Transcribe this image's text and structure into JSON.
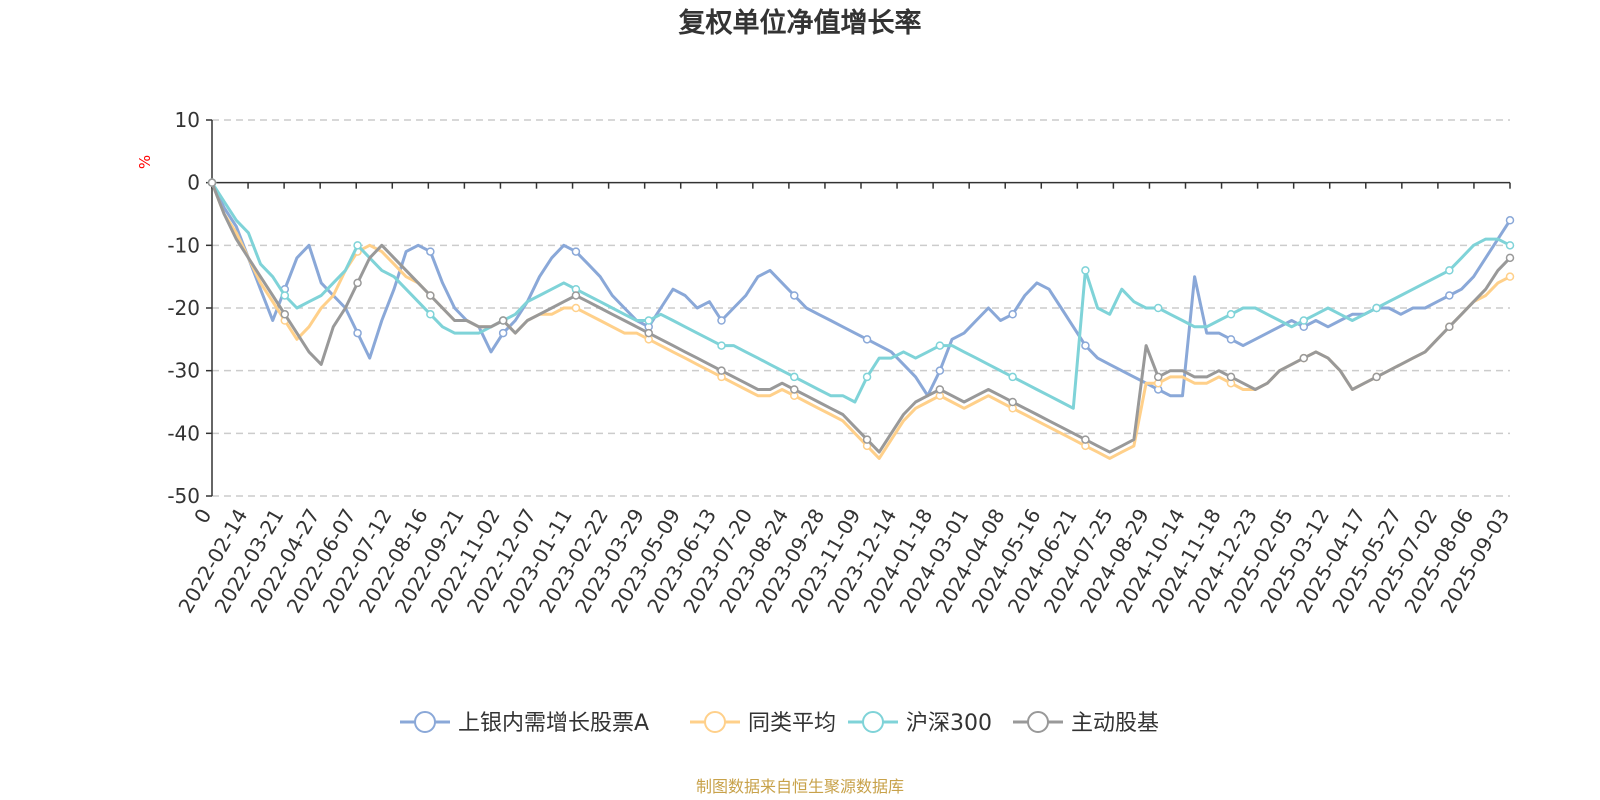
{
  "chart_data": {
    "type": "line",
    "title": "复权单位净值增长率",
    "ylabel": "%",
    "ylim": [
      -50,
      10
    ],
    "yticks": [
      10,
      0,
      -10,
      -20,
      -30,
      -40,
      -50
    ],
    "grid": true,
    "legend_position": "bottom-center",
    "x_tick_labels": [
      "0",
      "2022-02-14",
      "2022-03-21",
      "2022-04-27",
      "2022-06-07",
      "2022-07-12",
      "2022-08-16",
      "2022-09-21",
      "2022-11-02",
      "2022-12-07",
      "2023-01-11",
      "2023-02-22",
      "2023-03-29",
      "2023-05-09",
      "2023-06-13",
      "2023-07-20",
      "2023-08-24",
      "2023-09-28",
      "2023-11-09",
      "2023-12-14",
      "2024-01-18",
      "2024-03-01",
      "2024-04-08",
      "2024-05-16",
      "2024-06-21",
      "2024-07-25",
      "2024-08-29",
      "2024-10-14",
      "2024-11-18",
      "2024-12-23",
      "2025-02-05",
      "2025-03-12",
      "2025-04-17",
      "2025-05-27",
      "2025-07-02",
      "2025-08-06",
      "2025-09-03"
    ],
    "series": [
      {
        "name": "上银内需增长股票A",
        "color": "#8aa8d8",
        "values": [
          0,
          -4,
          -7,
          -12,
          -17,
          -22,
          -17,
          -12,
          -10,
          -16,
          -18,
          -20,
          -24,
          -28,
          -22,
          -17,
          -11,
          -10,
          -11,
          -16,
          -20,
          -22,
          -23,
          -27,
          -24,
          -22,
          -19,
          -15,
          -12,
          -10,
          -11,
          -13,
          -15,
          -18,
          -20,
          -22,
          -23,
          -20,
          -17,
          -18,
          -20,
          -19,
          -22,
          -20,
          -18,
          -15,
          -14,
          -16,
          -18,
          -20,
          -21,
          -22,
          -23,
          -24,
          -25,
          -26,
          -27,
          -29,
          -31,
          -34,
          -30,
          -25,
          -24,
          -22,
          -20,
          -22,
          -21,
          -18,
          -16,
          -17,
          -20,
          -23,
          -26,
          -28,
          -29,
          -30,
          -31,
          -32,
          -33,
          -34,
          -34,
          -15,
          -24,
          -24,
          -25,
          -26,
          -25,
          -24,
          -23,
          -22,
          -23,
          -22,
          -23,
          -22,
          -21,
          -21,
          -20,
          -20,
          -21,
          -20,
          -20,
          -19,
          -18,
          -17,
          -15,
          -12,
          -9,
          -6
        ]
      },
      {
        "name": "同类平均",
        "color": "#ffd08a",
        "values": [
          0,
          -5,
          -8,
          -12,
          -16,
          -19,
          -22,
          -25,
          -23,
          -20,
          -18,
          -14,
          -11,
          -10,
          -11,
          -13,
          -15,
          -16,
          -18,
          -20,
          -22,
          -22,
          -23,
          -23,
          -22,
          -24,
          -22,
          -21,
          -21,
          -20,
          -20,
          -21,
          -22,
          -23,
          -24,
          -24,
          -25,
          -26,
          -27,
          -28,
          -29,
          -30,
          -31,
          -32,
          -33,
          -34,
          -34,
          -33,
          -34,
          -35,
          -36,
          -37,
          -38,
          -40,
          -42,
          -44,
          -41,
          -38,
          -36,
          -35,
          -34,
          -35,
          -36,
          -35,
          -34,
          -35,
          -36,
          -37,
          -38,
          -39,
          -40,
          -41,
          -42,
          -43,
          -44,
          -43,
          -42,
          -32,
          -32,
          -31,
          -31,
          -32,
          -32,
          -31,
          -32,
          -33,
          -33,
          -32,
          -30,
          -29,
          -28,
          -27,
          -28,
          -30,
          -33,
          -32,
          -31,
          -30,
          -29,
          -28,
          -27,
          -25,
          -23,
          -21,
          -19,
          -18,
          -16,
          -15
        ]
      },
      {
        "name": "沪深300",
        "color": "#7fd3d8",
        "values": [
          0,
          -3,
          -6,
          -8,
          -13,
          -15,
          -18,
          -20,
          -19,
          -18,
          -16,
          -14,
          -10,
          -12,
          -14,
          -15,
          -17,
          -19,
          -21,
          -23,
          -24,
          -24,
          -24,
          -23,
          -22,
          -21,
          -19,
          -18,
          -17,
          -16,
          -17,
          -18,
          -19,
          -20,
          -21,
          -22,
          -22,
          -21,
          -22,
          -23,
          -24,
          -25,
          -26,
          -26,
          -27,
          -28,
          -29,
          -30,
          -31,
          -32,
          -33,
          -34,
          -34,
          -35,
          -31,
          -28,
          -28,
          -27,
          -28,
          -27,
          -26,
          -26,
          -27,
          -28,
          -29,
          -30,
          -31,
          -32,
          -33,
          -34,
          -35,
          -36,
          -14,
          -20,
          -21,
          -17,
          -19,
          -20,
          -20,
          -21,
          -22,
          -23,
          -23,
          -22,
          -21,
          -20,
          -20,
          -21,
          -22,
          -23,
          -22,
          -21,
          -20,
          -21,
          -22,
          -21,
          -20,
          -19,
          -18,
          -17,
          -16,
          -15,
          -14,
          -12,
          -10,
          -9,
          -9,
          -10
        ]
      },
      {
        "name": "主动股基",
        "color": "#999999",
        "values": [
          0,
          -5,
          -9,
          -12,
          -15,
          -18,
          -21,
          -24,
          -27,
          -29,
          -23,
          -20,
          -16,
          -12,
          -10,
          -12,
          -14,
          -16,
          -18,
          -20,
          -22,
          -22,
          -23,
          -23,
          -22,
          -24,
          -22,
          -21,
          -20,
          -19,
          -18,
          -19,
          -20,
          -21,
          -22,
          -23,
          -24,
          -25,
          -26,
          -27,
          -28,
          -29,
          -30,
          -31,
          -32,
          -33,
          -33,
          -32,
          -33,
          -34,
          -35,
          -36,
          -37,
          -39,
          -41,
          -43,
          -40,
          -37,
          -35,
          -34,
          -33,
          -34,
          -35,
          -34,
          -33,
          -34,
          -35,
          -36,
          -37,
          -38,
          -39,
          -40,
          -41,
          -42,
          -43,
          -42,
          -41,
          -26,
          -31,
          -30,
          -30,
          -31,
          -31,
          -30,
          -31,
          -32,
          -33,
          -32,
          -30,
          -29,
          -28,
          -27,
          -28,
          -30,
          -33,
          -32,
          -31,
          -30,
          -29,
          -28,
          -27,
          -25,
          -23,
          -21,
          -19,
          -17,
          -14,
          -12
        ]
      }
    ]
  },
  "source_note": "制图数据来自恒生聚源数据库"
}
